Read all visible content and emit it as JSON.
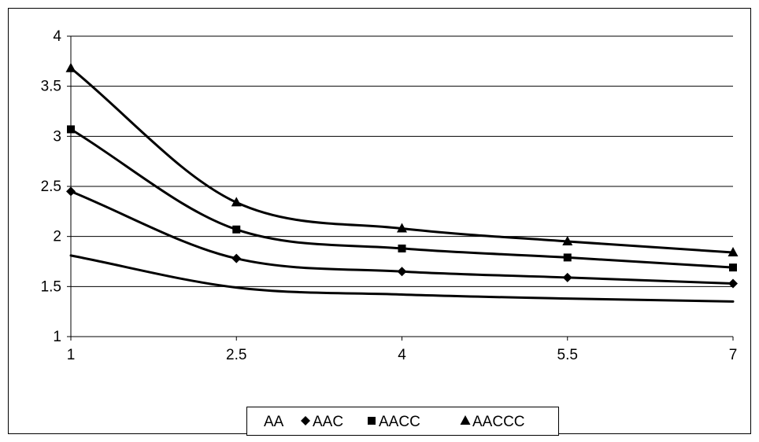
{
  "chart_data": {
    "type": "line",
    "title": "",
    "xlabel": "",
    "ylabel": "",
    "xlim": [
      1,
      7
    ],
    "ylim": [
      1,
      4
    ],
    "x_ticks": [
      "1",
      "2.5",
      "4",
      "5.5",
      "7"
    ],
    "y_ticks": [
      "1",
      "1.5",
      "2",
      "2.5",
      "3",
      "3.5",
      "4"
    ],
    "grid": "horizontal",
    "legend_position": "bottom",
    "series": [
      {
        "name": "AA",
        "marker": "none",
        "x": [
          1,
          2.5,
          4,
          5.5,
          7
        ],
        "y": [
          1.81,
          1.49,
          1.42,
          1.38,
          1.35
        ]
      },
      {
        "name": "AAC",
        "marker": "diamond",
        "x": [
          1,
          2.5,
          4,
          5.5,
          7
        ],
        "y": [
          2.45,
          1.78,
          1.65,
          1.59,
          1.53
        ]
      },
      {
        "name": "AACC",
        "marker": "square",
        "x": [
          1,
          2.5,
          4,
          5.5,
          7
        ],
        "y": [
          3.07,
          2.07,
          1.88,
          1.79,
          1.69
        ]
      },
      {
        "name": "AACCC",
        "marker": "triangle",
        "x": [
          1,
          2.5,
          4,
          5.5,
          7
        ],
        "y": [
          3.68,
          2.34,
          2.08,
          1.95,
          1.84
        ]
      }
    ]
  }
}
